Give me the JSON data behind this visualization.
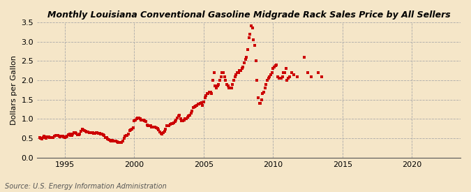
{
  "title": "Monthly Louisiana Conventional Gasoline Midgrade Rack Sales Price by All Sellers",
  "ylabel": "Dollars per Gallon",
  "source": "Source: U.S. Energy Information Administration",
  "fig_bg_color": "#F5E6C8",
  "plot_bg_color": "#F5E6C8",
  "dot_color": "#CC0000",
  "ylim": [
    0.0,
    3.5
  ],
  "xlim": [
    1993.0,
    2023.5
  ],
  "yticks": [
    0.0,
    0.5,
    1.0,
    1.5,
    2.0,
    2.5,
    3.0,
    3.5
  ],
  "xticks": [
    1995,
    2000,
    2005,
    2010,
    2015,
    2020
  ],
  "data": [
    [
      1993.17,
      0.52
    ],
    [
      1993.25,
      0.5
    ],
    [
      1993.33,
      0.49
    ],
    [
      1993.42,
      0.52
    ],
    [
      1993.5,
      0.55
    ],
    [
      1993.58,
      0.54
    ],
    [
      1993.67,
      0.51
    ],
    [
      1993.75,
      0.54
    ],
    [
      1993.83,
      0.54
    ],
    [
      1993.92,
      0.52
    ],
    [
      1994.0,
      0.52
    ],
    [
      1994.08,
      0.52
    ],
    [
      1994.17,
      0.53
    ],
    [
      1994.25,
      0.55
    ],
    [
      1994.33,
      0.57
    ],
    [
      1994.42,
      0.58
    ],
    [
      1994.5,
      0.57
    ],
    [
      1994.58,
      0.55
    ],
    [
      1994.67,
      0.54
    ],
    [
      1994.75,
      0.55
    ],
    [
      1994.83,
      0.55
    ],
    [
      1994.92,
      0.54
    ],
    [
      1995.0,
      0.53
    ],
    [
      1995.08,
      0.54
    ],
    [
      1995.17,
      0.56
    ],
    [
      1995.25,
      0.6
    ],
    [
      1995.33,
      0.61
    ],
    [
      1995.42,
      0.58
    ],
    [
      1995.5,
      0.58
    ],
    [
      1995.58,
      0.62
    ],
    [
      1995.67,
      0.65
    ],
    [
      1995.75,
      0.65
    ],
    [
      1995.83,
      0.63
    ],
    [
      1995.92,
      0.6
    ],
    [
      1996.0,
      0.6
    ],
    [
      1996.08,
      0.62
    ],
    [
      1996.17,
      0.68
    ],
    [
      1996.25,
      0.73
    ],
    [
      1996.33,
      0.72
    ],
    [
      1996.42,
      0.7
    ],
    [
      1996.5,
      0.68
    ],
    [
      1996.58,
      0.67
    ],
    [
      1996.67,
      0.67
    ],
    [
      1996.75,
      0.65
    ],
    [
      1996.83,
      0.64
    ],
    [
      1996.92,
      0.64
    ],
    [
      1997.0,
      0.64
    ],
    [
      1997.08,
      0.63
    ],
    [
      1997.17,
      0.63
    ],
    [
      1997.25,
      0.64
    ],
    [
      1997.33,
      0.64
    ],
    [
      1997.42,
      0.63
    ],
    [
      1997.5,
      0.63
    ],
    [
      1997.58,
      0.62
    ],
    [
      1997.67,
      0.61
    ],
    [
      1997.75,
      0.6
    ],
    [
      1997.83,
      0.57
    ],
    [
      1997.92,
      0.53
    ],
    [
      1998.0,
      0.52
    ],
    [
      1998.08,
      0.49
    ],
    [
      1998.17,
      0.47
    ],
    [
      1998.25,
      0.45
    ],
    [
      1998.33,
      0.44
    ],
    [
      1998.42,
      0.45
    ],
    [
      1998.5,
      0.44
    ],
    [
      1998.58,
      0.44
    ],
    [
      1998.67,
      0.43
    ],
    [
      1998.75,
      0.42
    ],
    [
      1998.83,
      0.4
    ],
    [
      1998.92,
      0.39
    ],
    [
      1999.0,
      0.39
    ],
    [
      1999.08,
      0.4
    ],
    [
      1999.17,
      0.43
    ],
    [
      1999.25,
      0.5
    ],
    [
      1999.33,
      0.55
    ],
    [
      1999.42,
      0.57
    ],
    [
      1999.5,
      0.57
    ],
    [
      1999.58,
      0.62
    ],
    [
      1999.67,
      0.7
    ],
    [
      1999.75,
      0.72
    ],
    [
      1999.83,
      0.73
    ],
    [
      1999.92,
      0.78
    ],
    [
      2000.0,
      0.95
    ],
    [
      2000.08,
      0.98
    ],
    [
      2000.17,
      1.0
    ],
    [
      2000.25,
      1.02
    ],
    [
      2000.33,
      1.03
    ],
    [
      2000.42,
      1.0
    ],
    [
      2000.5,
      0.98
    ],
    [
      2000.58,
      0.97
    ],
    [
      2000.67,
      0.97
    ],
    [
      2000.75,
      0.96
    ],
    [
      2000.83,
      0.93
    ],
    [
      2000.92,
      0.85
    ],
    [
      2001.0,
      0.83
    ],
    [
      2001.08,
      0.82
    ],
    [
      2001.17,
      0.82
    ],
    [
      2001.25,
      0.8
    ],
    [
      2001.33,
      0.8
    ],
    [
      2001.42,
      0.8
    ],
    [
      2001.5,
      0.79
    ],
    [
      2001.58,
      0.78
    ],
    [
      2001.67,
      0.75
    ],
    [
      2001.75,
      0.72
    ],
    [
      2001.83,
      0.67
    ],
    [
      2001.92,
      0.63
    ],
    [
      2002.0,
      0.62
    ],
    [
      2002.08,
      0.64
    ],
    [
      2002.17,
      0.68
    ],
    [
      2002.25,
      0.73
    ],
    [
      2002.33,
      0.82
    ],
    [
      2002.42,
      0.83
    ],
    [
      2002.5,
      0.83
    ],
    [
      2002.58,
      0.86
    ],
    [
      2002.67,
      0.88
    ],
    [
      2002.75,
      0.88
    ],
    [
      2002.83,
      0.9
    ],
    [
      2002.92,
      0.93
    ],
    [
      2003.0,
      0.98
    ],
    [
      2003.08,
      1.03
    ],
    [
      2003.17,
      1.08
    ],
    [
      2003.25,
      1.1
    ],
    [
      2003.33,
      1.0
    ],
    [
      2003.42,
      0.95
    ],
    [
      2003.5,
      0.95
    ],
    [
      2003.58,
      0.98
    ],
    [
      2003.67,
      1.0
    ],
    [
      2003.75,
      1.0
    ],
    [
      2003.83,
      1.05
    ],
    [
      2003.92,
      1.08
    ],
    [
      2004.0,
      1.1
    ],
    [
      2004.08,
      1.15
    ],
    [
      2004.17,
      1.2
    ],
    [
      2004.25,
      1.3
    ],
    [
      2004.33,
      1.32
    ],
    [
      2004.42,
      1.33
    ],
    [
      2004.5,
      1.35
    ],
    [
      2004.58,
      1.38
    ],
    [
      2004.67,
      1.38
    ],
    [
      2004.75,
      1.4
    ],
    [
      2004.83,
      1.42
    ],
    [
      2004.92,
      1.35
    ],
    [
      2005.0,
      1.45
    ],
    [
      2005.08,
      1.55
    ],
    [
      2005.17,
      1.6
    ],
    [
      2005.25,
      1.65
    ],
    [
      2005.33,
      1.65
    ],
    [
      2005.42,
      1.7
    ],
    [
      2005.5,
      1.7
    ],
    [
      2005.58,
      1.65
    ],
    [
      2005.67,
      2.0
    ],
    [
      2005.75,
      2.2
    ],
    [
      2005.83,
      1.85
    ],
    [
      2005.92,
      1.8
    ],
    [
      2006.0,
      1.85
    ],
    [
      2006.08,
      1.9
    ],
    [
      2006.17,
      2.0
    ],
    [
      2006.25,
      2.1
    ],
    [
      2006.33,
      2.2
    ],
    [
      2006.42,
      2.2
    ],
    [
      2006.5,
      2.1
    ],
    [
      2006.58,
      2.0
    ],
    [
      2006.67,
      1.9
    ],
    [
      2006.75,
      1.85
    ],
    [
      2006.83,
      1.8
    ],
    [
      2006.92,
      1.8
    ],
    [
      2007.0,
      1.8
    ],
    [
      2007.08,
      1.9
    ],
    [
      2007.17,
      2.0
    ],
    [
      2007.25,
      2.1
    ],
    [
      2007.33,
      2.15
    ],
    [
      2007.42,
      2.2
    ],
    [
      2007.5,
      2.2
    ],
    [
      2007.58,
      2.25
    ],
    [
      2007.67,
      2.25
    ],
    [
      2007.75,
      2.3
    ],
    [
      2007.83,
      2.35
    ],
    [
      2007.92,
      2.45
    ],
    [
      2008.0,
      2.55
    ],
    [
      2008.08,
      2.6
    ],
    [
      2008.17,
      2.8
    ],
    [
      2008.25,
      3.1
    ],
    [
      2008.33,
      3.2
    ],
    [
      2008.42,
      3.4
    ],
    [
      2008.5,
      3.35
    ],
    [
      2008.58,
      3.05
    ],
    [
      2008.67,
      2.9
    ],
    [
      2008.75,
      2.5
    ],
    [
      2008.83,
      2.0
    ],
    [
      2008.92,
      1.55
    ],
    [
      2009.0,
      1.4
    ],
    [
      2009.08,
      1.4
    ],
    [
      2009.17,
      1.5
    ],
    [
      2009.25,
      1.65
    ],
    [
      2009.33,
      1.7
    ],
    [
      2009.42,
      1.8
    ],
    [
      2009.5,
      1.9
    ],
    [
      2009.58,
      2.0
    ],
    [
      2009.67,
      2.05
    ],
    [
      2009.75,
      2.1
    ],
    [
      2009.83,
      2.15
    ],
    [
      2009.92,
      2.2
    ],
    [
      2010.0,
      2.3
    ],
    [
      2010.08,
      2.35
    ],
    [
      2010.17,
      2.38
    ],
    [
      2010.25,
      2.4
    ],
    [
      2010.33,
      2.1
    ],
    [
      2010.42,
      2.05
    ],
    [
      2010.5,
      2.05
    ],
    [
      2010.58,
      2.05
    ],
    [
      2010.67,
      2.1
    ],
    [
      2010.75,
      2.2
    ],
    [
      2010.83,
      2.2
    ],
    [
      2010.92,
      2.3
    ],
    [
      2011.0,
      2.0
    ],
    [
      2011.08,
      2.05
    ],
    [
      2011.17,
      2.1
    ],
    [
      2011.33,
      2.2
    ],
    [
      2011.5,
      2.15
    ],
    [
      2011.75,
      2.1
    ],
    [
      2012.25,
      2.6
    ],
    [
      2012.5,
      2.2
    ],
    [
      2012.75,
      2.1
    ],
    [
      2013.25,
      2.2
    ],
    [
      2013.5,
      2.1
    ]
  ]
}
